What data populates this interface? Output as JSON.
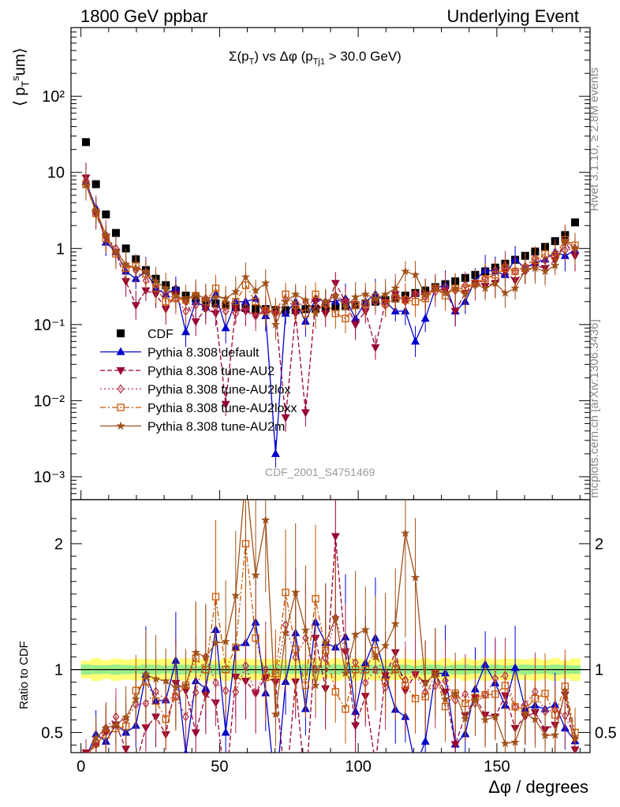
{
  "header": {
    "left": "1800 GeV ppbar",
    "right": "Underlying Event"
  },
  "notes": {
    "rivet": "Rivet 3.1.10, ≥ 2.8M events",
    "mcplots": "mcplots.cern.ch [arXiv:1306.3436]",
    "analysis_id": "CDF_2001_S4751469"
  },
  "colors": {
    "cdf": "#000000",
    "default": "#0000cc",
    "au2": "#990033",
    "au2lox": "#b83050",
    "au2loxx": "#cc5500",
    "au2m": "#a0521a",
    "band_inner": "#99ee88",
    "band_outer": "#ffff77"
  },
  "chart_data": {
    "type": "scatter",
    "title": "Σ(pT) vs Δφ (pTj1 > 30.0 GeV)",
    "xlabel": "Δφ / degrees",
    "ylabel": "⟨ pTsum ⟩",
    "ratio_ylabel": "Ratio to CDF",
    "xlim": [
      -3.6,
      183.6
    ],
    "ylim": [
      0.0005,
      800
    ],
    "yscale": "log",
    "ratio_ylim": [
      0.34,
      2.35
    ],
    "x_ticks": [
      0,
      50,
      100,
      150
    ],
    "y_tick_labels": [
      "10⁻³",
      "10⁻²",
      "10⁻¹",
      "1",
      "10",
      "10²"
    ],
    "ratio_tick_labels": [
      "0.5",
      "1",
      "2"
    ],
    "legend_position": "lower-left",
    "x": [
      1.8,
      5.4,
      9,
      12.6,
      16.2,
      19.8,
      23.4,
      27,
      30.6,
      34.2,
      37.8,
      41.4,
      45,
      48.6,
      52.2,
      55.8,
      59.4,
      63,
      66.6,
      70.2,
      73.8,
      77.4,
      81,
      84.6,
      88.2,
      91.8,
      95.4,
      99,
      102.6,
      106.2,
      109.8,
      113.4,
      117,
      120.6,
      124.2,
      127.8,
      131.4,
      135,
      138.6,
      142.2,
      145.8,
      149.4,
      153,
      156.6,
      160.2,
      163.8,
      167.4,
      171,
      174.6,
      178.2
    ],
    "series": [
      {
        "name": "CDF",
        "key": "cdf",
        "marker": "square",
        "line": "none",
        "values": [
          25,
          7,
          2.8,
          1.6,
          1.0,
          0.72,
          0.52,
          0.4,
          0.33,
          0.28,
          0.24,
          0.22,
          0.2,
          0.19,
          0.18,
          0.17,
          0.165,
          0.16,
          0.16,
          0.155,
          0.155,
          0.155,
          0.16,
          0.16,
          0.165,
          0.17,
          0.175,
          0.18,
          0.19,
          0.2,
          0.21,
          0.22,
          0.24,
          0.26,
          0.28,
          0.31,
          0.34,
          0.37,
          0.41,
          0.45,
          0.5,
          0.56,
          0.63,
          0.71,
          0.8,
          0.91,
          1.05,
          1.25,
          1.5,
          2.2
        ]
      },
      {
        "name": "Pythia 8.308 default",
        "key": "default",
        "marker": "triangle-up",
        "line": "solid",
        "values": [
          7.5,
          3.4,
          1.2,
          0.9,
          0.5,
          0.4,
          0.5,
          0.3,
          0.25,
          0.3,
          0.08,
          0.2,
          0.17,
          0.25,
          0.09,
          0.2,
          0.2,
          0.22,
          0.13,
          0.002,
          0.14,
          0.2,
          0.11,
          0.22,
          0.2,
          0.2,
          0.22,
          0.12,
          0.2,
          0.25,
          0.2,
          0.15,
          0.15,
          0.06,
          0.12,
          0.3,
          0.33,
          0.15,
          0.2,
          0.38,
          0.52,
          0.5,
          0.45,
          0.72,
          0.55,
          0.65,
          0.72,
          0.9,
          0.8,
          0.95
        ]
      },
      {
        "name": "Pythia 8.308 tune-AU2",
        "key": "au2",
        "marker": "triangle-down",
        "line": "dashed",
        "values": [
          8.5,
          2.8,
          1.4,
          0.9,
          0.37,
          0.18,
          0.28,
          0.25,
          0.16,
          0.25,
          0.2,
          0.11,
          0.16,
          0.14,
          0.009,
          0.16,
          0.15,
          0.13,
          0.15,
          0.14,
          0.006,
          0.14,
          0.007,
          0.2,
          0.14,
          0.35,
          0.2,
          0.1,
          0.15,
          0.05,
          0.2,
          0.25,
          0.2,
          0.25,
          0.25,
          0.3,
          0.28,
          0.15,
          0.26,
          0.35,
          0.32,
          0.35,
          0.5,
          0.38,
          0.5,
          0.6,
          0.55,
          0.7,
          1.2,
          0.8
        ]
      },
      {
        "name": "Pythia 8.308 tune-AU2lox",
        "key": "au2lox",
        "marker": "diamond",
        "line": "dotted",
        "values": [
          7.8,
          3.0,
          1.5,
          1.0,
          0.6,
          0.52,
          0.38,
          0.33,
          0.25,
          0.22,
          0.15,
          0.18,
          0.22,
          0.17,
          0.15,
          0.14,
          0.17,
          0.13,
          0.16,
          0.14,
          0.21,
          0.17,
          0.2,
          0.16,
          0.18,
          0.24,
          0.2,
          0.19,
          0.17,
          0.2,
          0.18,
          0.23,
          0.22,
          0.25,
          0.23,
          0.27,
          0.31,
          0.28,
          0.33,
          0.33,
          0.4,
          0.52,
          0.6,
          0.5,
          0.58,
          0.75,
          0.7,
          0.85,
          0.95,
          1.0
        ]
      },
      {
        "name": "Pythia 8.308 tune-AU2loxx",
        "key": "au2loxx",
        "marker": "square-open",
        "line": "dashdot",
        "values": [
          7.0,
          2.9,
          1.35,
          0.85,
          0.55,
          0.6,
          0.47,
          0.3,
          0.2,
          0.22,
          0.21,
          0.24,
          0.2,
          0.3,
          0.18,
          0.2,
          0.33,
          0.2,
          0.15,
          0.15,
          0.25,
          0.18,
          0.14,
          0.25,
          0.19,
          0.14,
          0.12,
          0.18,
          0.19,
          0.23,
          0.19,
          0.22,
          0.21,
          0.2,
          0.22,
          0.3,
          0.24,
          0.3,
          0.3,
          0.35,
          0.4,
          0.45,
          0.55,
          0.5,
          0.55,
          0.7,
          0.85,
          0.8,
          1.3,
          1.1
        ]
      },
      {
        "name": "Pythia 8.308 tune-AU2m",
        "key": "au2m",
        "marker": "star",
        "line": "solid",
        "values": [
          6.8,
          3.2,
          1.5,
          0.9,
          0.62,
          0.55,
          0.5,
          0.37,
          0.3,
          0.24,
          0.21,
          0.25,
          0.22,
          0.23,
          0.22,
          0.27,
          0.42,
          0.28,
          0.35,
          0.1,
          0.2,
          0.25,
          0.21,
          0.14,
          0.2,
          0.24,
          0.17,
          0.23,
          0.25,
          0.22,
          0.25,
          0.3,
          0.5,
          0.45,
          0.25,
          0.3,
          0.26,
          0.3,
          0.25,
          0.34,
          0.3,
          0.35,
          0.26,
          0.3,
          0.52,
          0.55,
          0.5,
          0.6,
          1.25,
          1.0
        ]
      }
    ]
  }
}
